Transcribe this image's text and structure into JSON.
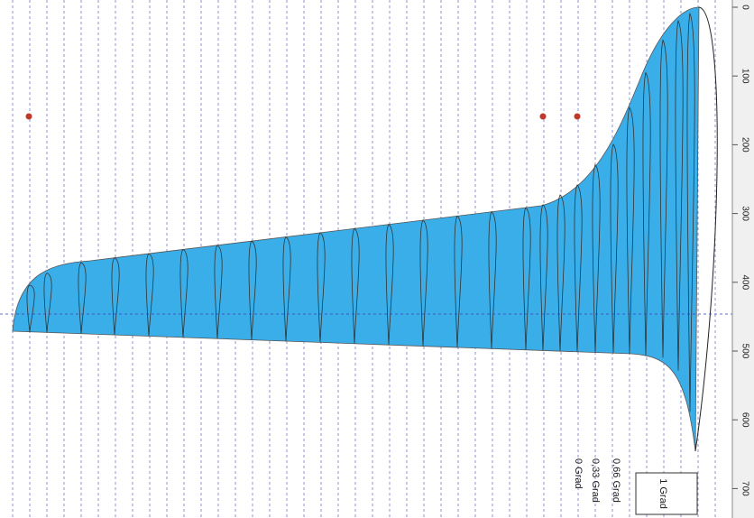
{
  "axis": {
    "ticks": [
      0,
      100,
      200,
      300,
      400,
      500,
      600,
      700
    ]
  },
  "legend": {
    "labels": [
      "0,66 Grad",
      "0,33 Grad",
      "0 Grad"
    ],
    "box": "1 Grad"
  }
}
